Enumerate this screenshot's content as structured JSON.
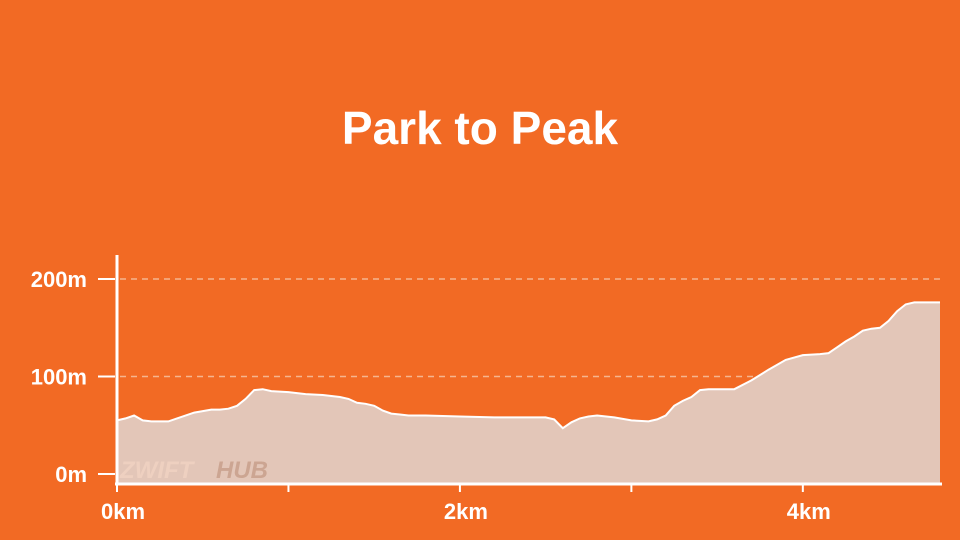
{
  "title": "Park to Peak",
  "watermark": {
    "part1": "ZWIFT",
    "part2": "HUB"
  },
  "colors": {
    "background": "#F26A24",
    "area_fill": "#E3C6B8",
    "line": "#ffffff",
    "grid": "#F5B58F"
  },
  "chart_data": {
    "type": "area",
    "title": "Park to Peak",
    "xlabel": "",
    "ylabel": "",
    "xlim": [
      0,
      4.8
    ],
    "ylim": [
      0,
      200
    ],
    "grid": true,
    "x_ticks": [
      0,
      1,
      2,
      3,
      4
    ],
    "x_tick_labels": [
      "0km",
      "",
      "2km",
      "",
      "4km"
    ],
    "y_ticks": [
      0,
      100,
      200
    ],
    "y_tick_labels": [
      "0m",
      "100m",
      "200m"
    ],
    "series": [
      {
        "x": [
          0,
          0.05,
          0.1,
          0.15,
          0.2,
          0.3,
          0.35,
          0.45,
          0.55,
          0.6,
          0.65,
          0.7,
          0.75,
          0.8,
          0.85,
          0.9,
          1.0,
          1.1,
          1.2,
          1.3,
          1.35,
          1.4,
          1.45,
          1.5,
          1.55,
          1.6,
          1.65,
          1.7,
          1.8,
          2.0,
          2.2,
          2.4,
          2.5,
          2.55,
          2.6,
          2.65,
          2.7,
          2.75,
          2.8,
          2.9,
          3.0,
          3.1,
          3.15,
          3.2,
          3.25,
          3.3,
          3.35,
          3.4,
          3.45,
          3.5,
          3.6,
          3.7,
          3.8,
          3.9,
          4.0,
          4.1,
          4.15,
          4.2,
          4.25,
          4.3,
          4.35,
          4.4,
          4.45,
          4.5,
          4.55,
          4.6,
          4.65,
          4.7,
          4.75,
          4.8
        ],
        "y": [
          55,
          57,
          60,
          55,
          54,
          54,
          57,
          63,
          66,
          66,
          67,
          70,
          77,
          86,
          87,
          85,
          84,
          82,
          81,
          79,
          77,
          73,
          72,
          70,
          65,
          62,
          61,
          60,
          60,
          59,
          58,
          58,
          58,
          56,
          47,
          53,
          57,
          59,
          60,
          58,
          55,
          54,
          56,
          60,
          70,
          75,
          79,
          86,
          87,
          87,
          87,
          96,
          107,
          117,
          122,
          123,
          124,
          130,
          136,
          141,
          147,
          149,
          150,
          157,
          167,
          174,
          176,
          176,
          176,
          176
        ]
      }
    ]
  }
}
